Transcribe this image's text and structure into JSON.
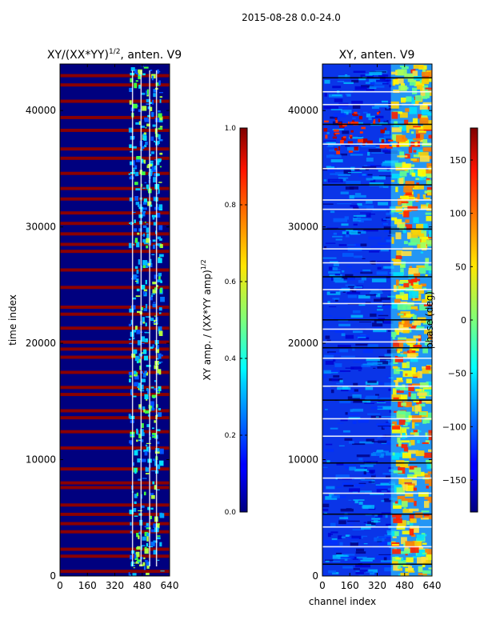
{
  "figure": {
    "suptitle": "2015-08-28 0.0-24.0"
  },
  "chart_data": [
    {
      "type": "heatmap",
      "title_main": "XY/(XX*YY)",
      "title_exp": "1/2",
      "title_tail": ", anten. V9",
      "xlabel": "",
      "ylabel": "time index",
      "xlim": [
        0,
        640
      ],
      "ylim": [
        0,
        44000
      ],
      "xticks": [
        0,
        160,
        320,
        480,
        640
      ],
      "yticks": [
        0,
        10000,
        20000,
        30000,
        40000
      ],
      "colormap": "jet",
      "colorbar": {
        "label_main": "XY amp. / (XX*YY amp)",
        "label_exp": "1/2",
        "range": [
          0.0,
          1.0
        ],
        "ticks": [
          "0.0",
          "0.2",
          "0.4",
          "0.6",
          "0.8",
          "1.0"
        ]
      },
      "features": {
        "active_channel_band": [
          400,
          600
        ],
        "flagged_row_times": [
          400,
          1700,
          2300,
          3800,
          4500,
          5300,
          6100,
          7600,
          8000,
          9200,
          11000,
          12400,
          13600,
          14200,
          15600,
          16200,
          17500,
          18800,
          19500,
          20100,
          21300,
          22500,
          23100,
          24800,
          26300,
          27900,
          28500,
          29400,
          30300,
          31200,
          32400,
          33300,
          34600,
          35900,
          36700,
          38300,
          39400,
          40800,
          42200,
          43000
        ]
      }
    },
    {
      "type": "heatmap",
      "title": "XY, anten. V9",
      "xlabel": "channel index",
      "ylabel": "",
      "xlim": [
        0,
        640
      ],
      "ylim": [
        0,
        44000
      ],
      "xticks": [
        0,
        160,
        320,
        480,
        640
      ],
      "yticks": [
        0,
        10000,
        20000,
        30000,
        40000
      ],
      "colormap": "jet",
      "colorbar": {
        "label": "phase (deg)",
        "range": [
          -180,
          180
        ],
        "ticks": [
          "150",
          "100",
          "50",
          "0",
          "−50",
          "−100",
          "−150"
        ]
      },
      "features": {
        "active_channel_band": [
          400,
          640
        ],
        "flagged_row_times": [
          1000,
          2500,
          4200,
          5300,
          7100,
          8400,
          9700,
          12000,
          13500,
          15100,
          16300,
          18700,
          19600,
          20100,
          21200,
          22000,
          23400,
          24600,
          25700,
          26900,
          28100,
          29800,
          31500,
          32300,
          33600,
          35000,
          37100,
          38800,
          40500,
          41600,
          42800
        ]
      }
    }
  ]
}
